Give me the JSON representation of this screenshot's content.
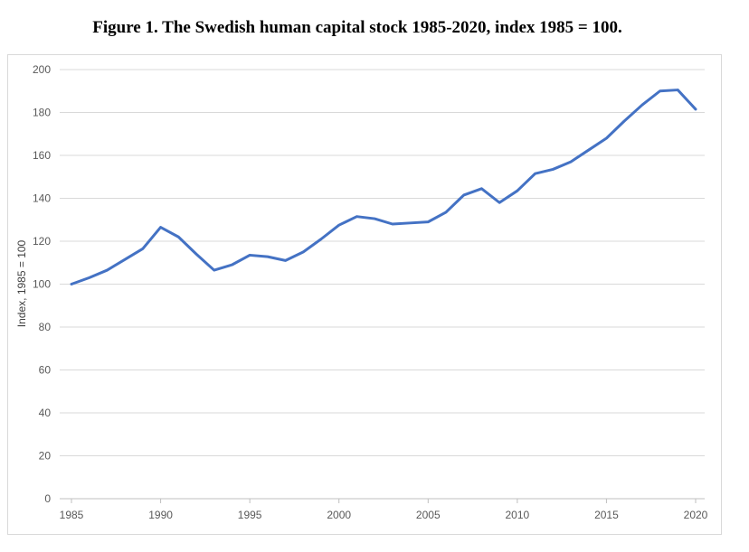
{
  "title": "Figure 1. The Swedish human capital stock 1985-2020, index 1985 = 100.",
  "chart_data": {
    "type": "line",
    "title": "Figure 1. The Swedish human capital stock 1985-2020, index 1985 = 100.",
    "xlabel": "",
    "ylabel": "Index, 1985 = 100",
    "xlim": [
      1985,
      2020
    ],
    "ylim": [
      0,
      200
    ],
    "x_ticks": [
      1985,
      1990,
      1995,
      2000,
      2005,
      2010,
      2015,
      2020
    ],
    "y_ticks": [
      0,
      20,
      40,
      60,
      80,
      100,
      120,
      140,
      160,
      180,
      200
    ],
    "grid": "horizontal",
    "legend": "none",
    "line_color": "#4472c4",
    "x": [
      1985,
      1986,
      1987,
      1988,
      1989,
      1990,
      1991,
      1992,
      1993,
      1994,
      1995,
      1996,
      1997,
      1998,
      1999,
      2000,
      2001,
      2002,
      2003,
      2004,
      2005,
      2006,
      2007,
      2008,
      2009,
      2010,
      2011,
      2012,
      2013,
      2014,
      2015,
      2016,
      2017,
      2018,
      2019,
      2020
    ],
    "y": [
      100,
      103,
      106.5,
      111.5,
      116.5,
      126.5,
      122,
      114,
      106.5,
      109,
      113.5,
      112.8,
      111,
      115,
      121,
      127.5,
      131.5,
      130.5,
      128,
      128.5,
      129,
      133.5,
      141.5,
      144.5,
      138,
      143.5,
      151.5,
      153.5,
      157,
      162.5,
      168,
      176,
      183.5,
      190,
      190.5,
      181.5
    ]
  }
}
